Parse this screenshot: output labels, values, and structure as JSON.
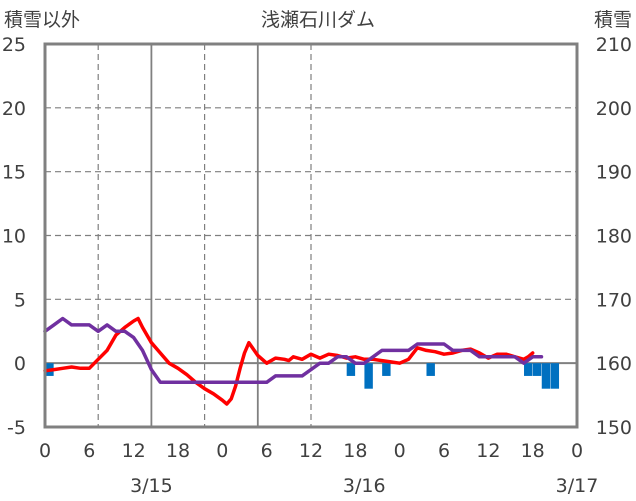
{
  "chart_data": {
    "type": "line",
    "title": "浅瀬石川ダム",
    "left_axis_label": "積雪以外",
    "right_axis_label": "積雪",
    "left_ylim": [
      -5,
      25
    ],
    "left_ticks": [
      "25",
      "20",
      "15",
      "10",
      "5",
      "0",
      "-5"
    ],
    "right_ylim": [
      150,
      210
    ],
    "right_ticks": [
      "210",
      "200",
      "190",
      "180",
      "170",
      "160",
      "150"
    ],
    "xlim": [
      0,
      60
    ],
    "x_ticks": [
      "0",
      "6",
      "12",
      "18",
      "0",
      "6",
      "12",
      "18",
      "0",
      "6",
      "12",
      "18",
      "0"
    ],
    "date_labels": [
      {
        "x": 6,
        "text": "3/15"
      },
      {
        "x": 18,
        "text": "3/16"
      },
      {
        "x": 30,
        "text": "3/17"
      }
    ],
    "day_boundaries": [
      12,
      24
    ],
    "dashed_gridlines_x": [
      6,
      18,
      30
    ],
    "grid_y_values": [
      20,
      15,
      10,
      5,
      -5
    ],
    "colors": {
      "temperature": "#ff0000",
      "snow_depth": "#7030a0",
      "precipitation": "#0070c0",
      "axis": "#808080",
      "grid": "#7f7f7f"
    },
    "series": [
      {
        "key": "temperature",
        "axis": "left",
        "points": [
          [
            0,
            -0.6
          ],
          [
            1,
            -0.5
          ],
          [
            2,
            -0.4
          ],
          [
            3,
            -0.3
          ],
          [
            4,
            -0.4
          ],
          [
            5,
            -0.4
          ],
          [
            6,
            0.3
          ],
          [
            7,
            1.0
          ],
          [
            8,
            2.2
          ],
          [
            9,
            2.8
          ],
          [
            10,
            3.3
          ],
          [
            10.5,
            3.5
          ],
          [
            11,
            2.8
          ],
          [
            12,
            1.6
          ],
          [
            13,
            0.8
          ],
          [
            14,
            0.0
          ],
          [
            15,
            -0.4
          ],
          [
            16,
            -0.9
          ],
          [
            17,
            -1.5
          ],
          [
            18,
            -2.0
          ],
          [
            19,
            -2.4
          ],
          [
            20,
            -2.9
          ],
          [
            20.5,
            -3.2
          ],
          [
            21,
            -2.8
          ],
          [
            21.5,
            -1.8
          ],
          [
            22,
            -0.4
          ],
          [
            22.5,
            0.8
          ],
          [
            23,
            1.6
          ],
          [
            24,
            0.6
          ],
          [
            25,
            0.0
          ],
          [
            26,
            0.4
          ],
          [
            27,
            0.3
          ],
          [
            27.5,
            0.2
          ],
          [
            28,
            0.5
          ],
          [
            29,
            0.3
          ],
          [
            30,
            0.7
          ],
          [
            31,
            0.4
          ],
          [
            32,
            0.7
          ],
          [
            33,
            0.6
          ],
          [
            34,
            0.4
          ],
          [
            35,
            0.5
          ],
          [
            36,
            0.3
          ],
          [
            37,
            0.3
          ],
          [
            38,
            0.2
          ],
          [
            39,
            0.1
          ],
          [
            40,
            0.0
          ],
          [
            41,
            0.3
          ],
          [
            42,
            1.2
          ],
          [
            43,
            1.0
          ],
          [
            44,
            0.9
          ],
          [
            45,
            0.7
          ],
          [
            46,
            0.8
          ],
          [
            47,
            1.0
          ],
          [
            48,
            1.1
          ],
          [
            49,
            0.8
          ],
          [
            50,
            0.4
          ],
          [
            51,
            0.7
          ],
          [
            52,
            0.7
          ],
          [
            53,
            0.5
          ],
          [
            54,
            0.3
          ],
          [
            54.5,
            0.5
          ],
          [
            55,
            0.8
          ]
        ]
      },
      {
        "key": "snow_depth",
        "axis": "right",
        "points": [
          [
            0,
            165
          ],
          [
            1,
            166
          ],
          [
            2,
            167
          ],
          [
            3,
            166
          ],
          [
            4,
            166
          ],
          [
            5,
            166
          ],
          [
            6,
            165
          ],
          [
            7,
            166
          ],
          [
            8,
            165
          ],
          [
            9,
            165
          ],
          [
            10,
            164
          ],
          [
            11,
            162
          ],
          [
            12,
            159
          ],
          [
            13,
            157
          ],
          [
            14,
            157
          ],
          [
            15,
            157
          ],
          [
            16,
            157
          ],
          [
            17,
            157
          ],
          [
            18,
            157
          ],
          [
            19,
            157
          ],
          [
            20,
            157
          ],
          [
            21,
            157
          ],
          [
            22,
            157
          ],
          [
            23,
            157
          ],
          [
            24,
            157
          ],
          [
            24.5,
            157
          ],
          [
            25,
            157
          ],
          [
            26,
            158
          ],
          [
            27,
            158
          ],
          [
            28,
            158
          ],
          [
            29,
            158
          ],
          [
            30,
            159
          ],
          [
            31,
            160
          ],
          [
            32,
            160
          ],
          [
            33,
            161
          ],
          [
            34,
            161
          ],
          [
            35,
            160
          ],
          [
            36,
            160
          ],
          [
            37,
            161
          ],
          [
            38,
            162
          ],
          [
            39,
            162
          ],
          [
            40,
            162
          ],
          [
            41,
            162
          ],
          [
            42,
            163
          ],
          [
            43,
            163
          ],
          [
            44,
            163
          ],
          [
            45,
            163
          ],
          [
            46,
            162
          ],
          [
            47,
            162
          ],
          [
            48,
            162
          ],
          [
            49,
            161
          ],
          [
            50,
            161
          ],
          [
            51,
            161
          ],
          [
            52,
            161
          ],
          [
            53,
            161
          ],
          [
            54,
            160
          ],
          [
            55,
            161
          ],
          [
            56,
            161
          ]
        ]
      }
    ],
    "precipitation_bars": [
      {
        "x": 0.5,
        "value": 1
      },
      {
        "x": 34.5,
        "value": 1
      },
      {
        "x": 36.5,
        "value": 2
      },
      {
        "x": 38.5,
        "value": 1
      },
      {
        "x": 43.5,
        "value": 1
      },
      {
        "x": 54.5,
        "value": 1
      },
      {
        "x": 55.5,
        "value": 1
      },
      {
        "x": 56.5,
        "value": 2
      },
      {
        "x": 57.5,
        "value": 2
      }
    ]
  }
}
